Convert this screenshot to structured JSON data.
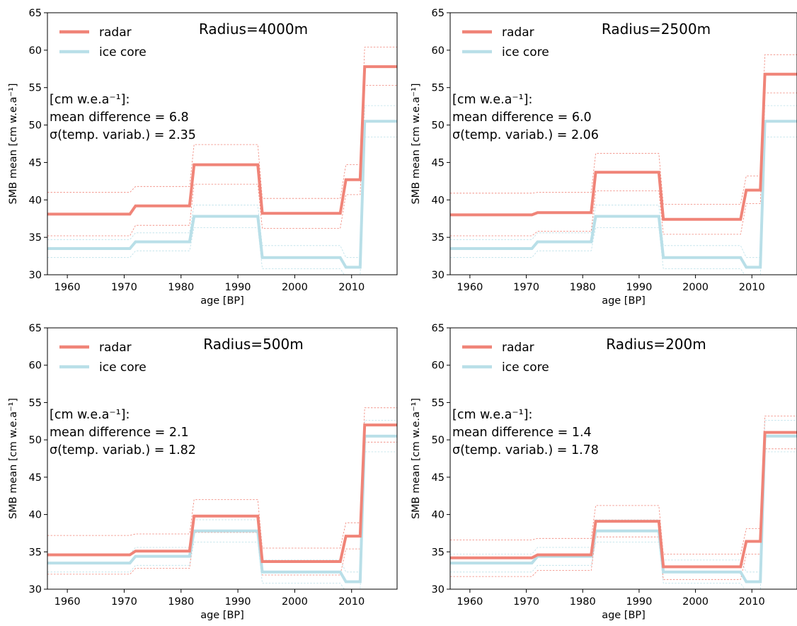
{
  "colors": {
    "radar": "#f08478",
    "ice_core": "#b9dfe8",
    "axis": "#000000"
  },
  "chart_data": [
    {
      "type": "line",
      "title": "Radius=4000m",
      "xlabel": "age [BP]",
      "ylabel": "SMB mean [cm w.e.a⁻¹]",
      "xlim": [
        1956.5,
        2018
      ],
      "ylim": [
        30,
        65
      ],
      "xticks": [
        1960,
        1970,
        1980,
        1990,
        2000,
        2010
      ],
      "yticks": [
        30,
        35,
        40,
        45,
        50,
        55,
        60,
        65
      ],
      "legend": "top-left",
      "stats": [
        "[cm w.e.a⁻¹]:",
        "mean difference = 6.8",
        "σ(temp. variab.) = 2.35"
      ],
      "series": [
        {
          "name": "radar",
          "color": "#f08478",
          "x": [
            1956.5,
            1971,
            1972,
            1981.5,
            1982.3,
            1993.5,
            1994.3,
            2008,
            2009,
            2011.5,
            2012.3,
            2018
          ],
          "y": [
            38.1,
            38.1,
            39.2,
            39.2,
            44.7,
            44.7,
            38.2,
            38.2,
            42.7,
            42.7,
            57.8,
            57.8
          ],
          "upper": [
            41.0,
            41.0,
            41.8,
            41.8,
            47.4,
            47.4,
            40.2,
            40.2,
            44.7,
            44.7,
            60.4,
            60.4
          ],
          "lower": [
            35.2,
            35.2,
            36.6,
            36.6,
            42.1,
            42.1,
            36.2,
            36.2,
            40.7,
            40.7,
            55.3,
            55.3
          ]
        },
        {
          "name": "ice core",
          "color": "#b9dfe8",
          "x": [
            1956.5,
            1971,
            1972,
            1981.5,
            1982.3,
            1993.5,
            1994.3,
            2008,
            2009,
            2011.5,
            2012.3,
            2018
          ],
          "y": [
            33.5,
            33.5,
            34.4,
            34.4,
            37.8,
            37.8,
            32.3,
            32.3,
            31.0,
            31.0,
            50.5,
            50.5
          ],
          "upper": [
            34.7,
            34.7,
            35.6,
            35.6,
            39.3,
            39.3,
            33.9,
            33.9,
            32.3,
            32.3,
            52.6,
            52.6
          ],
          "lower": [
            32.3,
            32.3,
            33.2,
            33.2,
            36.3,
            36.3,
            30.8,
            30.8,
            29.7,
            29.7,
            48.4,
            48.4
          ]
        }
      ]
    },
    {
      "type": "line",
      "title": "Radius=2500m",
      "xlabel": "age [BP]",
      "ylabel": "SMB mean [cm w.e.a⁻¹]",
      "xlim": [
        1956.5,
        2018
      ],
      "ylim": [
        30,
        65
      ],
      "xticks": [
        1960,
        1970,
        1980,
        1990,
        2000,
        2010
      ],
      "yticks": [
        30,
        35,
        40,
        45,
        50,
        55,
        60,
        65
      ],
      "legend": "top-left",
      "stats": [
        "[cm w.e.a⁻¹]:",
        "mean difference = 6.0",
        "σ(temp. variab.) = 2.06"
      ],
      "series": [
        {
          "name": "radar",
          "color": "#f08478",
          "x": [
            1956.5,
            1971,
            1972,
            1981.5,
            1982.3,
            1993.5,
            1994.3,
            2008,
            2009,
            2011.5,
            2012.3,
            2018
          ],
          "y": [
            38.0,
            38.0,
            38.3,
            38.3,
            43.7,
            43.7,
            37.4,
            37.4,
            41.3,
            41.3,
            56.8,
            56.8
          ],
          "upper": [
            40.9,
            40.9,
            41.0,
            41.0,
            46.2,
            46.2,
            39.4,
            39.4,
            43.2,
            43.2,
            59.4,
            59.4
          ],
          "lower": [
            35.2,
            35.2,
            35.8,
            35.8,
            41.2,
            41.2,
            35.4,
            35.4,
            39.5,
            39.5,
            54.3,
            54.3
          ]
        },
        {
          "name": "ice core",
          "color": "#b9dfe8",
          "x": [
            1956.5,
            1971,
            1972,
            1981.5,
            1982.3,
            1993.5,
            1994.3,
            2008,
            2009,
            2011.5,
            2012.3,
            2018
          ],
          "y": [
            33.5,
            33.5,
            34.4,
            34.4,
            37.8,
            37.8,
            32.3,
            32.3,
            31.0,
            31.0,
            50.5,
            50.5
          ],
          "upper": [
            34.7,
            34.7,
            35.6,
            35.6,
            39.3,
            39.3,
            33.9,
            33.9,
            32.3,
            32.3,
            52.6,
            52.6
          ],
          "lower": [
            32.3,
            32.3,
            33.2,
            33.2,
            36.3,
            36.3,
            30.8,
            30.8,
            29.7,
            29.7,
            48.4,
            48.4
          ]
        }
      ]
    },
    {
      "type": "line",
      "title": "Radius=500m",
      "xlabel": "age [BP]",
      "ylabel": "SMB mean [cm w.e.a⁻¹]",
      "xlim": [
        1956.5,
        2018
      ],
      "ylim": [
        30,
        65
      ],
      "xticks": [
        1960,
        1970,
        1980,
        1990,
        2000,
        2010
      ],
      "yticks": [
        30,
        35,
        40,
        45,
        50,
        55,
        60,
        65
      ],
      "legend": "top-left",
      "stats": [
        "[cm w.e.a⁻¹]:",
        "mean difference = 2.1",
        "σ(temp. variab.) = 1.82"
      ],
      "series": [
        {
          "name": "radar",
          "color": "#f08478",
          "x": [
            1956.5,
            1971,
            1972,
            1981.5,
            1982.3,
            1993.5,
            1994.3,
            2008,
            2009,
            2011.5,
            2012.3,
            2018
          ],
          "y": [
            34.6,
            34.6,
            35.1,
            35.1,
            39.8,
            39.8,
            33.7,
            33.7,
            37.1,
            37.1,
            52.0,
            52.0
          ],
          "upper": [
            37.2,
            37.2,
            37.4,
            37.4,
            42.0,
            42.0,
            35.5,
            35.5,
            38.9,
            38.9,
            54.3,
            54.3
          ],
          "lower": [
            32.0,
            32.0,
            32.8,
            32.8,
            37.6,
            37.6,
            31.9,
            31.9,
            35.4,
            35.4,
            49.7,
            49.7
          ]
        },
        {
          "name": "ice core",
          "color": "#b9dfe8",
          "x": [
            1956.5,
            1971,
            1972,
            1981.5,
            1982.3,
            1993.5,
            1994.3,
            2008,
            2009,
            2011.5,
            2012.3,
            2018
          ],
          "y": [
            33.5,
            33.5,
            34.4,
            34.4,
            37.8,
            37.8,
            32.3,
            32.3,
            31.0,
            31.0,
            50.5,
            50.5
          ],
          "upper": [
            34.7,
            34.7,
            35.6,
            35.6,
            39.3,
            39.3,
            33.9,
            33.9,
            32.3,
            32.3,
            52.6,
            52.6
          ],
          "lower": [
            32.3,
            32.3,
            33.2,
            33.2,
            36.3,
            36.3,
            30.8,
            30.8,
            29.7,
            29.7,
            48.4,
            48.4
          ]
        }
      ]
    },
    {
      "type": "line",
      "title": "Radius=200m",
      "xlabel": "age [BP]",
      "ylabel": "SMB mean [cm w.e.a⁻¹]",
      "xlim": [
        1956.5,
        2018
      ],
      "ylim": [
        30,
        65
      ],
      "xticks": [
        1960,
        1970,
        1980,
        1990,
        2000,
        2010
      ],
      "yticks": [
        30,
        35,
        40,
        45,
        50,
        55,
        60,
        65
      ],
      "legend": "top-left",
      "stats": [
        "[cm w.e.a⁻¹]:",
        "mean difference = 1.4",
        "σ(temp. variab.) = 1.78"
      ],
      "series": [
        {
          "name": "radar",
          "color": "#f08478",
          "x": [
            1956.5,
            1971,
            1972,
            1981.5,
            1982.3,
            1993.5,
            1994.3,
            2008,
            2009,
            2011.5,
            2012.3,
            2018
          ],
          "y": [
            34.2,
            34.2,
            34.6,
            34.6,
            39.1,
            39.1,
            33.0,
            33.0,
            36.4,
            36.4,
            51.0,
            51.0
          ],
          "upper": [
            36.6,
            36.6,
            36.8,
            36.8,
            41.2,
            41.2,
            34.7,
            34.7,
            38.1,
            38.1,
            53.2,
            53.2
          ],
          "lower": [
            31.7,
            31.7,
            32.5,
            32.5,
            37.0,
            37.0,
            31.3,
            31.3,
            34.7,
            34.7,
            48.8,
            48.8
          ]
        },
        {
          "name": "ice core",
          "color": "#b9dfe8",
          "x": [
            1956.5,
            1971,
            1972,
            1981.5,
            1982.3,
            1993.5,
            1994.3,
            2008,
            2009,
            2011.5,
            2012.3,
            2018
          ],
          "y": [
            33.5,
            33.5,
            34.4,
            34.4,
            37.8,
            37.8,
            32.3,
            32.3,
            31.0,
            31.0,
            50.5,
            50.5
          ],
          "upper": [
            34.7,
            34.7,
            35.6,
            35.6,
            39.3,
            39.3,
            33.9,
            33.9,
            32.3,
            32.3,
            52.6,
            52.6
          ],
          "lower": [
            32.3,
            32.3,
            33.2,
            33.2,
            36.3,
            36.3,
            30.8,
            30.8,
            29.7,
            29.7,
            48.4,
            48.4
          ]
        }
      ]
    }
  ]
}
